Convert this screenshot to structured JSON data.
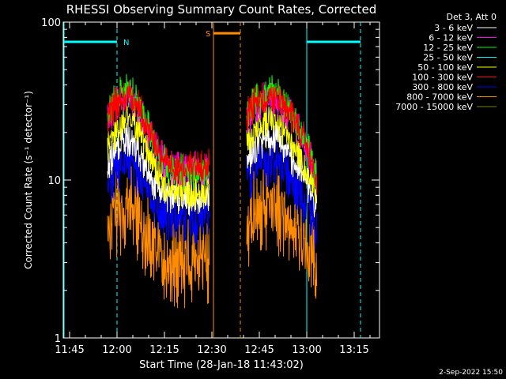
{
  "chart_data": {
    "type": "line",
    "title": "RHESSI Observing Summary Count Rates, Corrected",
    "xlabel": "Start Time (28-Jan-18 11:43:02)",
    "ylabel": "Corrected Count Rate (s⁻¹ detector⁻¹)",
    "y_scale": "log",
    "ylim": [
      1,
      100
    ],
    "x_unit": "minutes since 11:43:02",
    "xlim": [
      0,
      100
    ],
    "x_ticks": [
      {
        "value": 2,
        "label": "11:45"
      },
      {
        "value": 17,
        "label": "12:00"
      },
      {
        "value": 32,
        "label": "12:15"
      },
      {
        "value": 47,
        "label": "12:30"
      },
      {
        "value": 62,
        "label": "12:45"
      },
      {
        "value": 77,
        "label": "13:00"
      },
      {
        "value": 92,
        "label": "13:15"
      }
    ],
    "y_ticks": [
      {
        "value": 1,
        "label": "1"
      },
      {
        "value": 10,
        "label": "10"
      },
      {
        "value": 100,
        "label": "100"
      }
    ],
    "legend_title": "Det 3, Att 0",
    "legend_position": "top-right, outside plot",
    "x": [
      14,
      16,
      18,
      20,
      22,
      24,
      26,
      28,
      30,
      32,
      34,
      36,
      38,
      40,
      42,
      44,
      46,
      48,
      58,
      60,
      62,
      64,
      66,
      68,
      70,
      72,
      74,
      76,
      78,
      80
    ],
    "series": [
      {
        "name": "3 - 6 keV",
        "color": "#ffffff",
        "values": [
          13,
          16,
          18,
          19,
          17.5,
          15,
          12.5,
          10.5,
          9.2,
          8.6,
          8.3,
          8.2,
          8.2,
          8.2,
          8.2,
          8.2,
          8.5,
          null,
          14,
          16,
          18,
          19.5,
          19.5,
          18.5,
          17,
          15,
          13,
          11,
          9,
          7
        ]
      },
      {
        "name": "6 - 12 keV",
        "color": "#ff00ff",
        "values": [
          25,
          30,
          34,
          36,
          34,
          29,
          24,
          19,
          16,
          14,
          13,
          12.5,
          12.5,
          12.5,
          12.5,
          12.5,
          13,
          null,
          26,
          30,
          33,
          35,
          35,
          33,
          30,
          27,
          23,
          19,
          15,
          11
        ]
      },
      {
        "name": "12 - 25 keV",
        "color": "#00ff00",
        "values": [
          27,
          33,
          37,
          40,
          37,
          32,
          26,
          20,
          17,
          14,
          12.5,
          12,
          12,
          12,
          12,
          12,
          12.5,
          null,
          28,
          33,
          36,
          38,
          38,
          36,
          32,
          28,
          24,
          20,
          16,
          11
        ]
      },
      {
        "name": "25 - 50 keV",
        "color": "#00ffff",
        "values": [
          null,
          null,
          null,
          null,
          null,
          null,
          null,
          null,
          null,
          null,
          null,
          null,
          null,
          null,
          null,
          null,
          null,
          null,
          null,
          null,
          null,
          null,
          null,
          null,
          null,
          null,
          null,
          null,
          null,
          null
        ]
      },
      {
        "name": "50 - 100 keV",
        "color": "#ffff00",
        "values": [
          17,
          21,
          24,
          26,
          24,
          21,
          17.5,
          14,
          11.5,
          10,
          9.3,
          9,
          9,
          9,
          9,
          9,
          9.5,
          null,
          18,
          21,
          24,
          25.5,
          25.5,
          24,
          22,
          19,
          16,
          13,
          11,
          8.5
        ]
      },
      {
        "name": "100 - 300 keV",
        "color": "#ff0000",
        "values": [
          26,
          31,
          35,
          37,
          35,
          30,
          25,
          20,
          16,
          14,
          13,
          12.5,
          12.5,
          12.5,
          12.5,
          12.5,
          13,
          null,
          27,
          31,
          34,
          36,
          36,
          34,
          31,
          27,
          23,
          19,
          15,
          11
        ]
      },
      {
        "name": "300 - 800 keV",
        "color": "#0000ff",
        "values": [
          11,
          13,
          14.5,
          15,
          14,
          12,
          10,
          8.3,
          7.3,
          6.8,
          6.5,
          6.4,
          6.4,
          6.4,
          6.4,
          6.4,
          6.6,
          null,
          11.5,
          13,
          14.5,
          15,
          15,
          14.5,
          13,
          11.5,
          10,
          8.5,
          7,
          5.5
        ]
      },
      {
        "name": "800 - 7000 keV",
        "color": "#ff8c00",
        "values": [
          6,
          7,
          7.5,
          8,
          7.5,
          6.5,
          5.5,
          4.6,
          4,
          3.7,
          3.5,
          3.5,
          3.5,
          3.5,
          3.5,
          3.5,
          3.6,
          null,
          6,
          7,
          7.5,
          8,
          8,
          7.5,
          7,
          6.5,
          5.5,
          4.8,
          4,
          3.2
        ]
      },
      {
        "name": "7000 - 15000 keV",
        "color": "#808000",
        "values": [
          null,
          null,
          null,
          null,
          null,
          null,
          null,
          null,
          null,
          null,
          null,
          null,
          null,
          null,
          null,
          null,
          null,
          null,
          null,
          null,
          null,
          null,
          null,
          null,
          null,
          null,
          null,
          null,
          null,
          null
        ]
      }
    ],
    "intervals": [
      {
        "label": "N",
        "color": "#00ffff",
        "start": -10,
        "end": 17,
        "bar_level": 75
      },
      {
        "label": "",
        "color": "#00ffff",
        "start": 77,
        "end": 94,
        "bar_level": 75
      },
      {
        "label": "S",
        "color": "#ff8c00",
        "start": 47.5,
        "end": 56,
        "bar_level": 85
      }
    ],
    "grid": false
  },
  "footer": {
    "timestamp": "2-Sep-2022 15:50"
  }
}
